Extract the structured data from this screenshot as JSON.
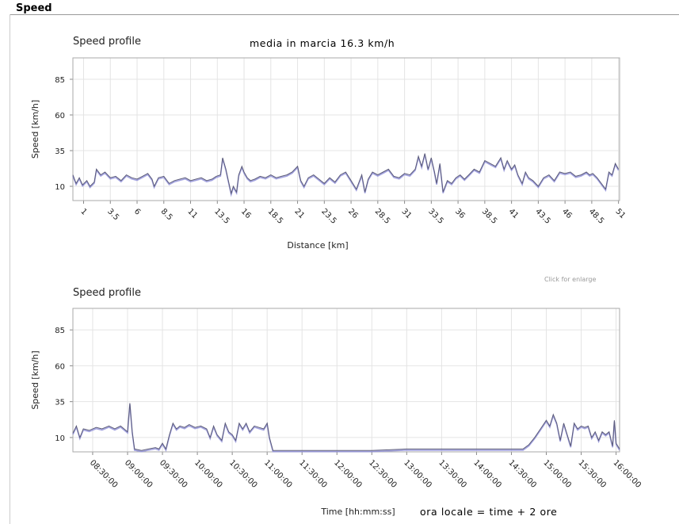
{
  "header": {
    "title": "Speed"
  },
  "link": {
    "enlarge": "Click for enlarge"
  },
  "annotations": {
    "media": "media in marcia 16.3 km/h",
    "ora": "ora locale = time + 2 ore"
  },
  "colors": {
    "line": "#5a5a78",
    "shadow": "#8c8cd8",
    "grid": "#e4e4e4",
    "axis": "#888888"
  },
  "chart_data": [
    {
      "type": "line",
      "title": "Speed profile",
      "xlabel": "Distance [km]",
      "ylabel": "Speed [km/h]",
      "xlim": [
        0,
        51.1
      ],
      "ylim": [
        0,
        100
      ],
      "yticks": [
        10,
        35,
        60,
        85
      ],
      "xticks": [
        1,
        3.5,
        6,
        8.5,
        11,
        13.5,
        16,
        18.5,
        21,
        23.5,
        26,
        28.5,
        31,
        33.5,
        36,
        38.5,
        41,
        43.5,
        46,
        48.5,
        51
      ],
      "xtick_labels": [
        "1",
        "3.5",
        "6",
        "8.5",
        "11",
        "13.5",
        "16",
        "18.5",
        "21",
        "23.5",
        "26",
        "28.5",
        "31",
        "33.5",
        "36",
        "38.5",
        "41",
        "43.5",
        "46",
        "48.5",
        "51"
      ],
      "grid": true,
      "series": [
        {
          "x": [
            0,
            0.3,
            0.6,
            0.9,
            1.3,
            1.6,
            2.0,
            2.2,
            2.6,
            3.0,
            3.5,
            4.0,
            4.5,
            5.0,
            5.5,
            6.0,
            6.5,
            7.0,
            7.4,
            7.6,
            8.0,
            8.5,
            9.0,
            9.5,
            10.0,
            10.5,
            11.0,
            11.5,
            12.0,
            12.5,
            13.0,
            13.4,
            13.8,
            14.0,
            14.3,
            14.5,
            14.8,
            15.0,
            15.3,
            15.5,
            15.8,
            16.0,
            16.3,
            16.6,
            17.0,
            17.5,
            18.0,
            18.5,
            19.0,
            19.5,
            20.0,
            20.5,
            21.0,
            21.3,
            21.6,
            22.0,
            22.5,
            23.0,
            23.5,
            24.0,
            24.5,
            25.0,
            25.5,
            26.0,
            26.5,
            27.0,
            27.3,
            27.6,
            28.0,
            28.5,
            29.0,
            29.5,
            30.0,
            30.5,
            31.0,
            31.5,
            32.0,
            32.3,
            32.6,
            32.9,
            33.2,
            33.5,
            33.8,
            34.0,
            34.3,
            34.6,
            35.0,
            35.4,
            35.8,
            36.2,
            36.6,
            37.0,
            37.5,
            38.0,
            38.5,
            39.0,
            39.5,
            40.0,
            40.3,
            40.6,
            41.0,
            41.3,
            41.6,
            42.0,
            42.3,
            42.6,
            43.0,
            43.5,
            44.0,
            44.5,
            45.0,
            45.5,
            46.0,
            46.5,
            47.0,
            47.5,
            48.0,
            48.3,
            48.6,
            49.0,
            49.4,
            49.8,
            50.1,
            50.4,
            50.7,
            51.0
          ],
          "y": [
            18,
            12,
            16,
            11,
            14,
            10,
            13,
            22,
            18,
            20,
            16,
            17,
            14,
            18,
            16,
            15,
            17,
            19,
            15,
            10,
            16,
            17,
            12,
            14,
            15,
            16,
            14,
            15,
            16,
            14,
            15,
            17,
            18,
            30,
            22,
            15,
            5,
            10,
            6,
            18,
            24,
            20,
            16,
            14,
            15,
            17,
            16,
            18,
            16,
            17,
            18,
            20,
            24,
            14,
            10,
            16,
            18,
            15,
            12,
            16,
            13,
            18,
            20,
            14,
            8,
            18,
            6,
            15,
            20,
            18,
            20,
            22,
            17,
            16,
            19,
            18,
            22,
            31,
            24,
            33,
            22,
            30,
            20,
            12,
            26,
            6,
            14,
            12,
            16,
            18,
            15,
            18,
            22,
            20,
            28,
            26,
            24,
            30,
            22,
            28,
            22,
            25,
            18,
            12,
            20,
            16,
            14,
            10,
            16,
            18,
            14,
            20,
            19,
            20,
            17,
            18,
            20,
            18,
            19,
            16,
            12,
            8,
            20,
            18,
            26,
            22
          ]
        }
      ]
    },
    {
      "type": "line",
      "title": "Speed profile",
      "xlabel": "Time  [hh:mm:ss]",
      "ylabel": "Speed [km/h]",
      "xlim": [
        "08:13:00",
        "16:03:00"
      ],
      "ylim": [
        0,
        100
      ],
      "yticks": [
        10,
        35,
        60,
        85
      ],
      "xticks": [
        "08:30:00",
        "09:00:00",
        "09:30:00",
        "10:00:00",
        "10:30:00",
        "11:00:00",
        "11:30:00",
        "12:00:00",
        "12:30:00",
        "13:00:00",
        "13:30:00",
        "14:00:00",
        "14:30:00",
        "15:00:00",
        "15:30:00",
        "16:00:00"
      ],
      "grid": true,
      "series": [
        {
          "x": [
            "08:13:00",
            "08:16:00",
            "08:19:00",
            "08:22:00",
            "08:27:00",
            "08:33:00",
            "08:38:00",
            "08:44:00",
            "08:49:00",
            "08:54:00",
            "09:00:00",
            "09:02:00",
            "09:04:00",
            "09:06:00",
            "09:12:00",
            "09:18:00",
            "09:24:00",
            "09:27:00",
            "09:30:00",
            "09:33:00",
            "09:36:00",
            "09:39:00",
            "09:42:00",
            "09:45:00",
            "09:49:00",
            "09:53:00",
            "09:58:00",
            "10:03:00",
            "10:08:00",
            "10:11:00",
            "10:14:00",
            "10:17:00",
            "10:21:00",
            "10:24:00",
            "10:27:00",
            "10:30:00",
            "10:33:00",
            "10:36:00",
            "10:39:00",
            "10:42:00",
            "10:45:00",
            "10:49:00",
            "10:53:00",
            "10:57:00",
            "11:00:00",
            "11:02:00",
            "11:05:00",
            "11:10:00",
            "11:30:00",
            "12:00:00",
            "12:30:00",
            "13:00:00",
            "13:30:00",
            "14:00:00",
            "14:30:00",
            "14:40:00",
            "14:45:00",
            "14:50:00",
            "14:55:00",
            "15:00:00",
            "15:03:00",
            "15:06:00",
            "15:09:00",
            "15:12:00",
            "15:15:00",
            "15:18:00",
            "15:21:00",
            "15:24:00",
            "15:27:00",
            "15:30:00",
            "15:33:00",
            "15:36:00",
            "15:39:00",
            "15:42:00",
            "15:45:00",
            "15:48:00",
            "15:51:00",
            "15:54:00",
            "15:57:00",
            "15:58:30",
            "16:00:00",
            "16:03:00"
          ],
          "y": [
            13,
            18,
            10,
            16,
            15,
            17,
            16,
            18,
            16,
            18,
            14,
            34,
            14,
            2,
            1,
            2,
            3,
            2,
            6,
            2,
            12,
            20,
            16,
            18,
            17,
            19,
            17,
            18,
            16,
            10,
            18,
            12,
            8,
            20,
            14,
            12,
            8,
            20,
            16,
            20,
            14,
            18,
            17,
            16,
            20,
            10,
            1,
            1,
            1,
            1,
            1,
            2,
            2,
            2,
            2,
            2,
            5,
            10,
            16,
            22,
            18,
            26,
            20,
            8,
            20,
            12,
            4,
            20,
            16,
            18,
            17,
            18,
            10,
            14,
            8,
            14,
            12,
            14,
            4,
            22,
            6,
            2
          ]
        }
      ]
    }
  ]
}
